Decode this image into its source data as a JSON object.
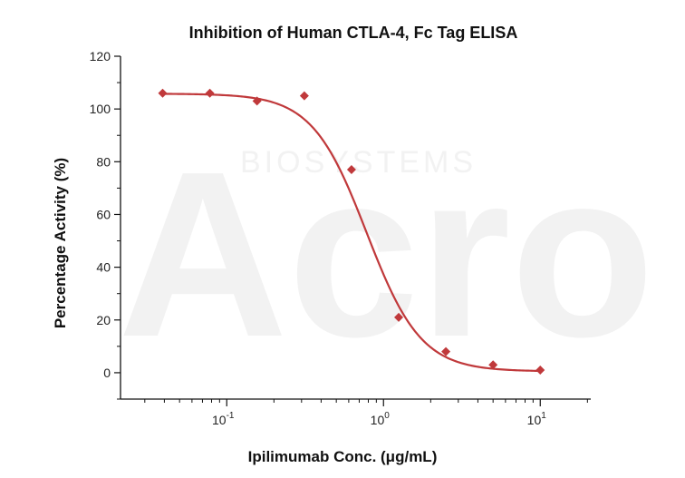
{
  "watermark": {
    "logo_text": "Acro",
    "sub_text": "BIOSYSTEMS"
  },
  "chart_data": {
    "type": "scatter",
    "title": "Inhibition of Human CTLA-4, Fc Tag ELISA",
    "xlabel": "Ipilimumab Conc. (μg/mL)",
    "ylabel": "Percentage Activity (%)",
    "xscale": "log",
    "xlim": [
      0.021,
      21
    ],
    "ylim": [
      -10,
      120
    ],
    "yticks": [
      0,
      20,
      40,
      60,
      80,
      100,
      120
    ],
    "xticks": [
      {
        "value": 0.1,
        "base": "10",
        "exp": "-1"
      },
      {
        "value": 1,
        "base": "10",
        "exp": "0"
      },
      {
        "value": 10,
        "base": "10",
        "exp": "1"
      }
    ],
    "grid": false,
    "legend": "none",
    "colors": {
      "series": "#c0393b",
      "axis": "#111111"
    },
    "series": [
      {
        "marker": "diamond",
        "x": [
          0.039,
          0.078,
          0.156,
          0.3125,
          0.625,
          1.25,
          2.5,
          5,
          10
        ],
        "y": [
          106,
          106,
          103,
          105,
          77,
          21,
          8,
          3,
          1
        ]
      }
    ],
    "fit": {
      "model": "4PL",
      "top": 105.8,
      "bottom": 0.5,
      "ec50": 0.78,
      "hill": 2.5,
      "x_range": [
        0.039,
        10
      ]
    }
  }
}
